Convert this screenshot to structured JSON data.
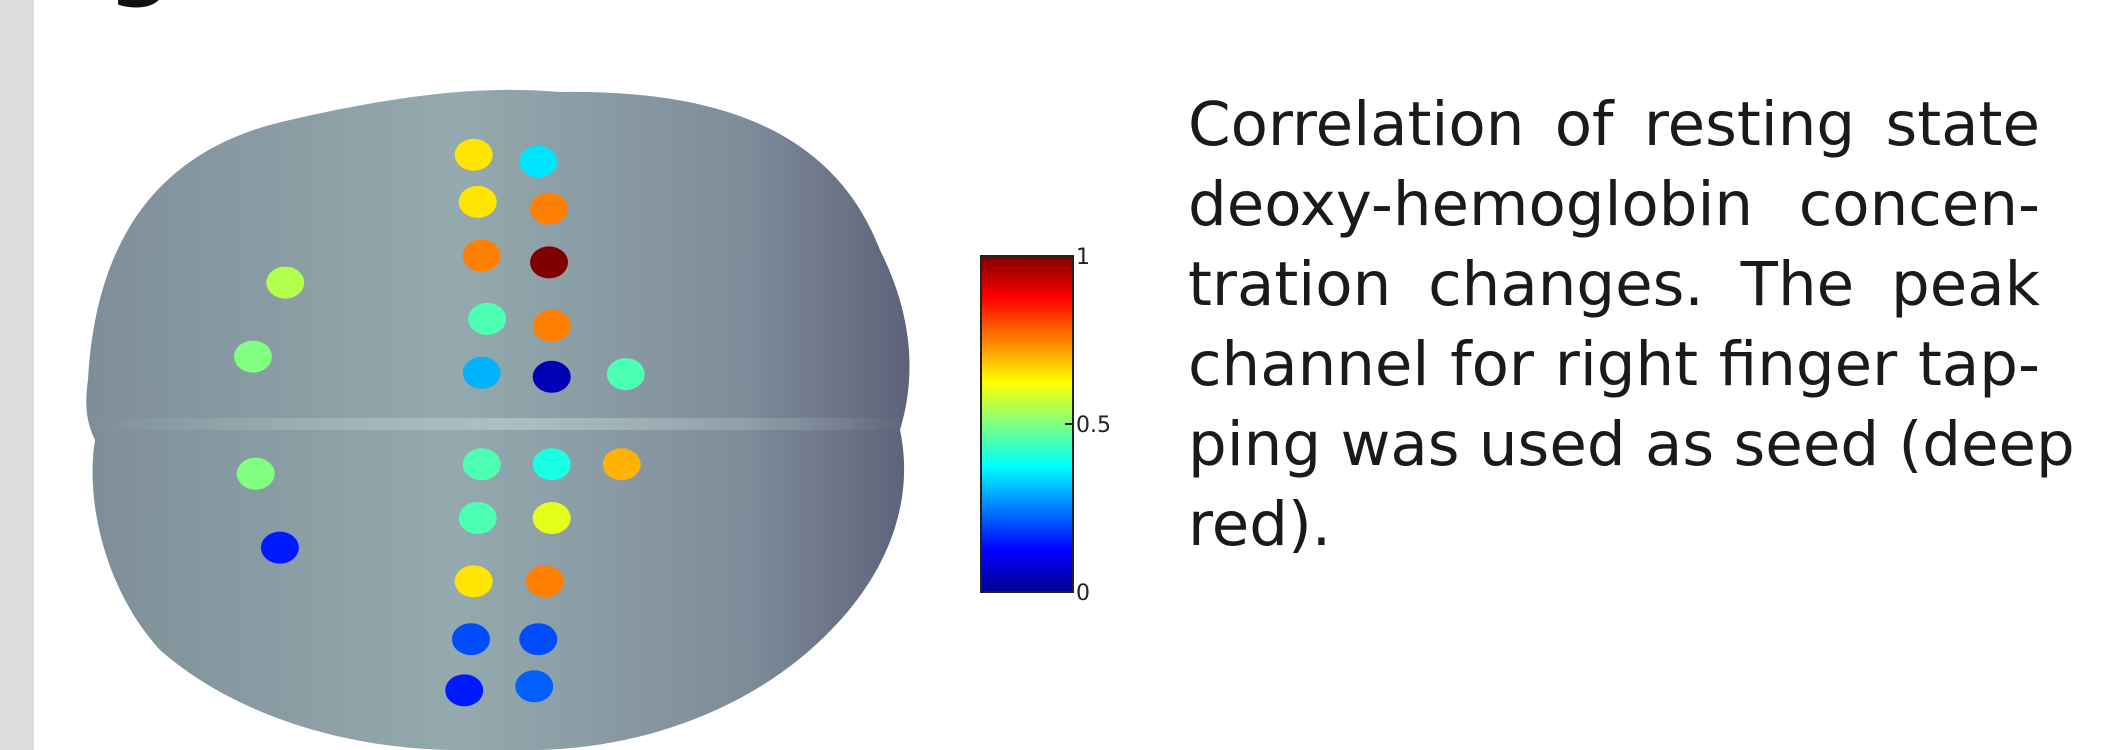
{
  "heading": "g",
  "figure": {
    "colorbar": {
      "lim": [
        0,
        1
      ],
      "ticks": [
        0,
        0.5,
        1
      ]
    },
    "channels": {
      "values": [
        0.65,
        0.35,
        0.65,
        0.75,
        0.75,
        1.0,
        0.55,
        0.45,
        0.75,
        0.5,
        0.3,
        0.05,
        0.45,
        0.45,
        0.4,
        0.7,
        0.5,
        0.45,
        0.6,
        0.15,
        0.65,
        0.75,
        0.2,
        0.2,
        0.15,
        0.22
      ]
    }
  },
  "caption": {
    "lines": [
      "Correlation of resting state",
      "deoxy-hemoglobin concen-",
      "tration changes. The peak",
      "channel for right finger tap-",
      "ping was used as seed (deep",
      "red)."
    ]
  }
}
